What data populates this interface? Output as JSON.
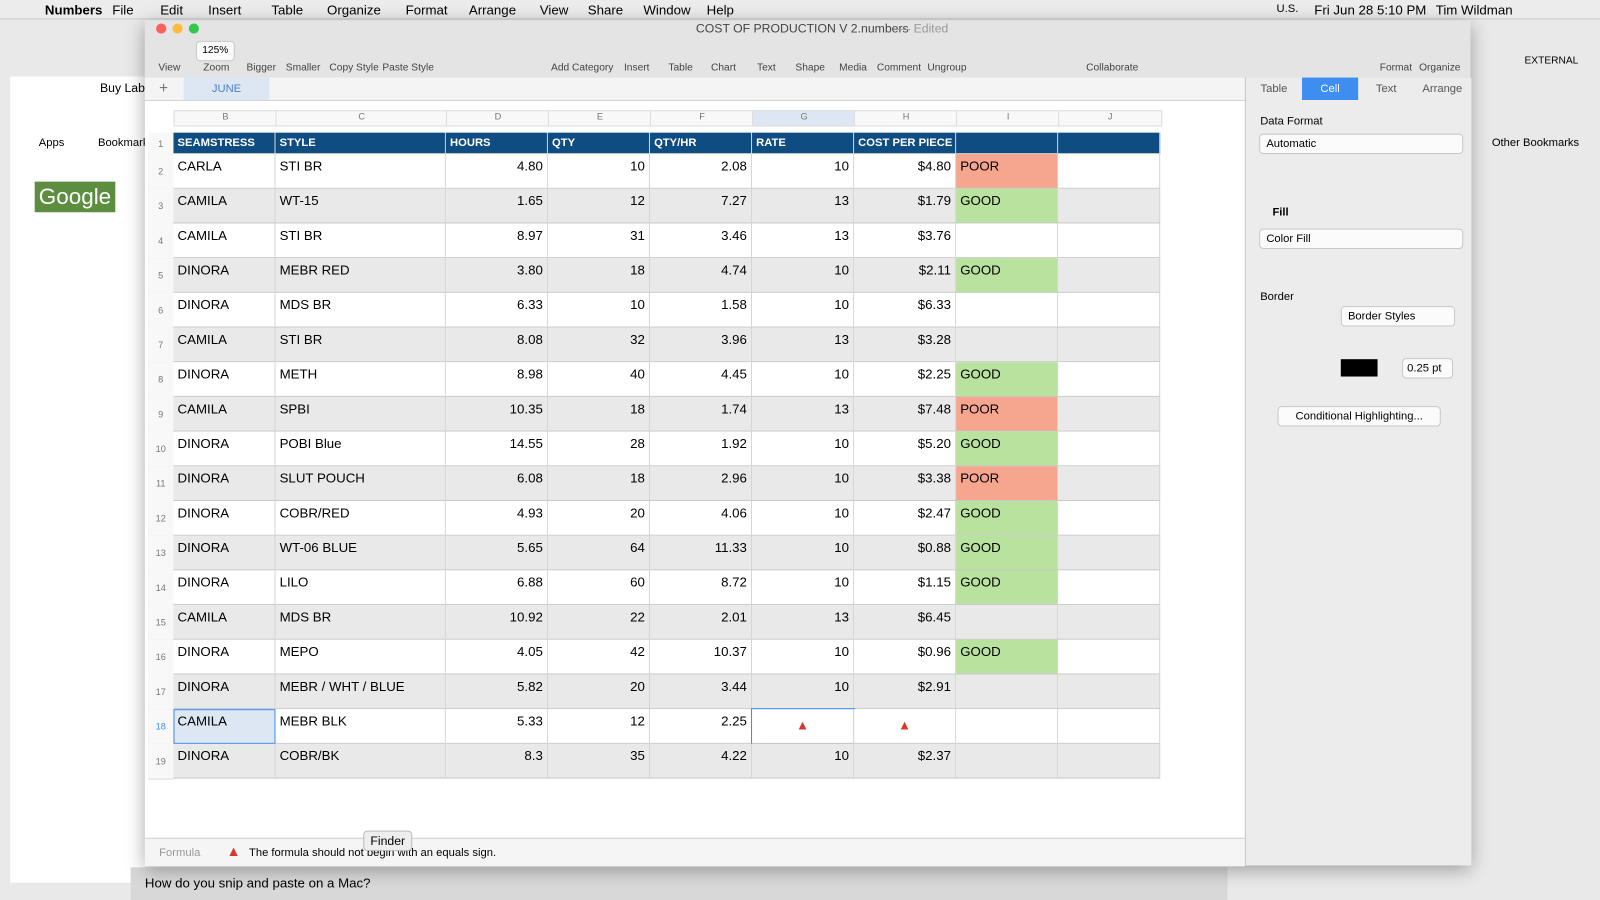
{
  "menubar": {
    "app": "Numbers",
    "items": [
      "File",
      "Edit",
      "Insert",
      "Table",
      "Organize",
      "Format",
      "Arrange",
      "View",
      "Share",
      "Window",
      "Help"
    ],
    "input": "U.S.",
    "clock": "Fri Jun 28  5:10 PM",
    "user": "Tim Wildman"
  },
  "background": {
    "tab": "Buy Labe",
    "apps": "Apps",
    "bookmarks": "Bookmark",
    "other_bookmarks": "Other Bookmarks",
    "logo": "Google",
    "drive": "EXTERNAL",
    "search": "How do you snip and paste on a Mac?"
  },
  "window": {
    "title": "COST OF PRODUCTION V 2.numbers",
    "state": "— Edited"
  },
  "toolbar": {
    "zoom": "125%",
    "left": [
      "View",
      "Zoom",
      "Bigger",
      "Smaller",
      "Copy Style",
      "Paste Style"
    ],
    "middle": [
      "Add Category",
      "Insert",
      "Table",
      "Chart",
      "Text",
      "Shape",
      "Media",
      "Comment",
      "Ungroup"
    ],
    "collaborate": "Collaborate",
    "right": [
      "Format",
      "Organize"
    ]
  },
  "sheet_tab": "JUNE",
  "table": {
    "column_letters": [
      "B",
      "C",
      "D",
      "E",
      "F",
      "G",
      "H",
      "I",
      "J"
    ],
    "row_numbers": [
      1,
      2,
      3,
      4,
      5,
      6,
      7,
      8,
      9,
      10,
      11,
      12,
      13,
      14,
      15,
      16,
      17,
      18,
      19
    ],
    "header": [
      "SEAMSTRESS",
      "STYLE",
      "HOURS",
      "QTY",
      "QTY/HR",
      "RATE",
      "COST PER PIECE"
    ],
    "rows": [
      [
        "CARLA",
        "STI BR",
        "4.80",
        "10",
        "2.08",
        "10",
        "$4.80",
        "POOR"
      ],
      [
        "CAMILA",
        "WT-15",
        "1.65",
        "12",
        "7.27",
        "13",
        "$1.79",
        "GOOD"
      ],
      [
        "CAMILA",
        "STI BR",
        "8.97",
        "31",
        "3.46",
        "13",
        "$3.76",
        null
      ],
      [
        "DINORA",
        "MEBR RED",
        "3.80",
        "18",
        "4.74",
        "10",
        "$2.11",
        "GOOD"
      ],
      [
        "DINORA",
        "MDS BR",
        "6.33",
        "10",
        "1.58",
        "10",
        "$6.33",
        null
      ],
      [
        "CAMILA",
        "STI BR",
        "8.08",
        "32",
        "3.96",
        "13",
        "$3.28",
        null
      ],
      [
        "DINORA",
        "METH",
        "8.98",
        "40",
        "4.45",
        "10",
        "$2.25",
        "GOOD"
      ],
      [
        "CAMILA",
        "SPBI",
        "10.35",
        "18",
        "1.74",
        "13",
        "$7.48",
        "POOR"
      ],
      [
        "DINORA",
        "POBI Blue",
        "14.55",
        "28",
        "1.92",
        "10",
        "$5.20",
        "GOOD"
      ],
      [
        "DINORA",
        "SLUT POUCH",
        "6.08",
        "18",
        "2.96",
        "10",
        "$3.38",
        "POOR"
      ],
      [
        "DINORA",
        "COBR/RED",
        "4.93",
        "20",
        "4.06",
        "10",
        "$2.47",
        "GOOD"
      ],
      [
        "DINORA",
        "WT-06 BLUE",
        "5.65",
        "64",
        "11.33",
        "10",
        "$0.88",
        "GOOD"
      ],
      [
        "DINORA",
        "LILO",
        "6.88",
        "60",
        "8.72",
        "10",
        "$1.15",
        "GOOD"
      ],
      [
        "CAMILA",
        "MDS BR",
        "10.92",
        "22",
        "2.01",
        "13",
        "$6.45",
        null
      ],
      [
        "DINORA",
        "MEPO",
        "4.05",
        "42",
        "10.37",
        "10",
        "$0.96",
        "GOOD"
      ],
      [
        "DINORA",
        "MEBR / WHT / BLUE",
        "5.82",
        "20",
        "3.44",
        "10",
        "$2.91",
        null
      ],
      [
        "CAMILA",
        "MEBR BLK",
        "5.33",
        "12",
        "2.25",
        null,
        null,
        null
      ],
      [
        "DINORA",
        "COBR/BK",
        "8.3",
        "35",
        "4.22",
        "10",
        "$2.37",
        null
      ]
    ],
    "rating_colors": {
      "POOR": "#f6a58e",
      "GOOD": "#b8e29e"
    }
  },
  "sidebar": {
    "tabs": [
      "Table",
      "Cell",
      "Text",
      "Arrange"
    ],
    "data_format": "Data Format",
    "format_value": "Automatic",
    "fill": "Fill",
    "fill_value": "Color Fill",
    "border": "Border",
    "border_styles": "Border Styles",
    "border_width": "0.25 pt",
    "conditional": "Conditional Highlighting..."
  },
  "formula_bar": {
    "label": "Formula",
    "message": "The formula should not begin with an equals sign."
  },
  "dock_tooltip": "Finder"
}
